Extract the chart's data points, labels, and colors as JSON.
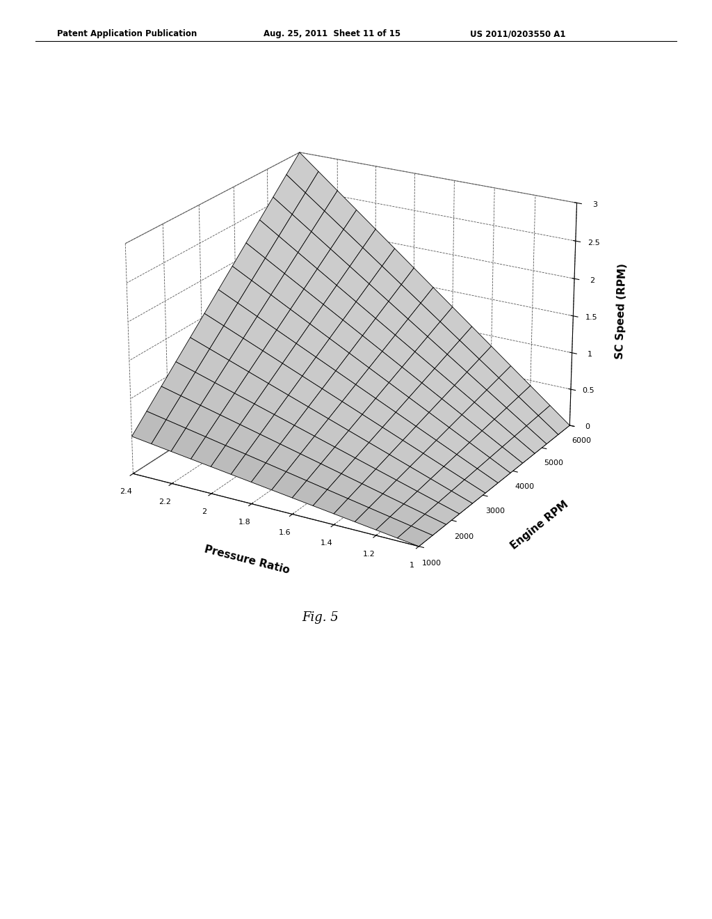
{
  "title": "Fig. 5",
  "xlabel": "Pressure Ratio",
  "ylabel": "Engine RPM",
  "zlabel": "SC Speed (RPM)",
  "pressure_ratio_min": 1.0,
  "pressure_ratio_max": 2.4,
  "engine_rpm_min": 1000,
  "engine_rpm_max": 6000,
  "sc_speed_min": 0.0,
  "sc_speed_max": 3.0,
  "pressure_ratio_ticks": [
    2.4,
    2.2,
    2.0,
    1.8,
    1.6,
    1.4,
    1.2,
    1.0
  ],
  "engine_rpm_ticks": [
    1000,
    2000,
    3000,
    4000,
    5000,
    6000
  ],
  "z_ticks": [
    0,
    0.5,
    1.0,
    1.5,
    2.0,
    2.5,
    3.0
  ],
  "z_tick_labels": [
    "0",
    "0.5",
    "1",
    "1.5",
    "2",
    "2.5",
    "3"
  ],
  "header_left": "Patent Application Publication",
  "header_mid": "Aug. 25, 2011  Sheet 11 of 15",
  "header_right": "US 2011/0203550 A1",
  "background_color": "#ffffff",
  "surface_color": "#e0e0e0",
  "grid_color": "#000000",
  "elev": 22,
  "azim": -60
}
